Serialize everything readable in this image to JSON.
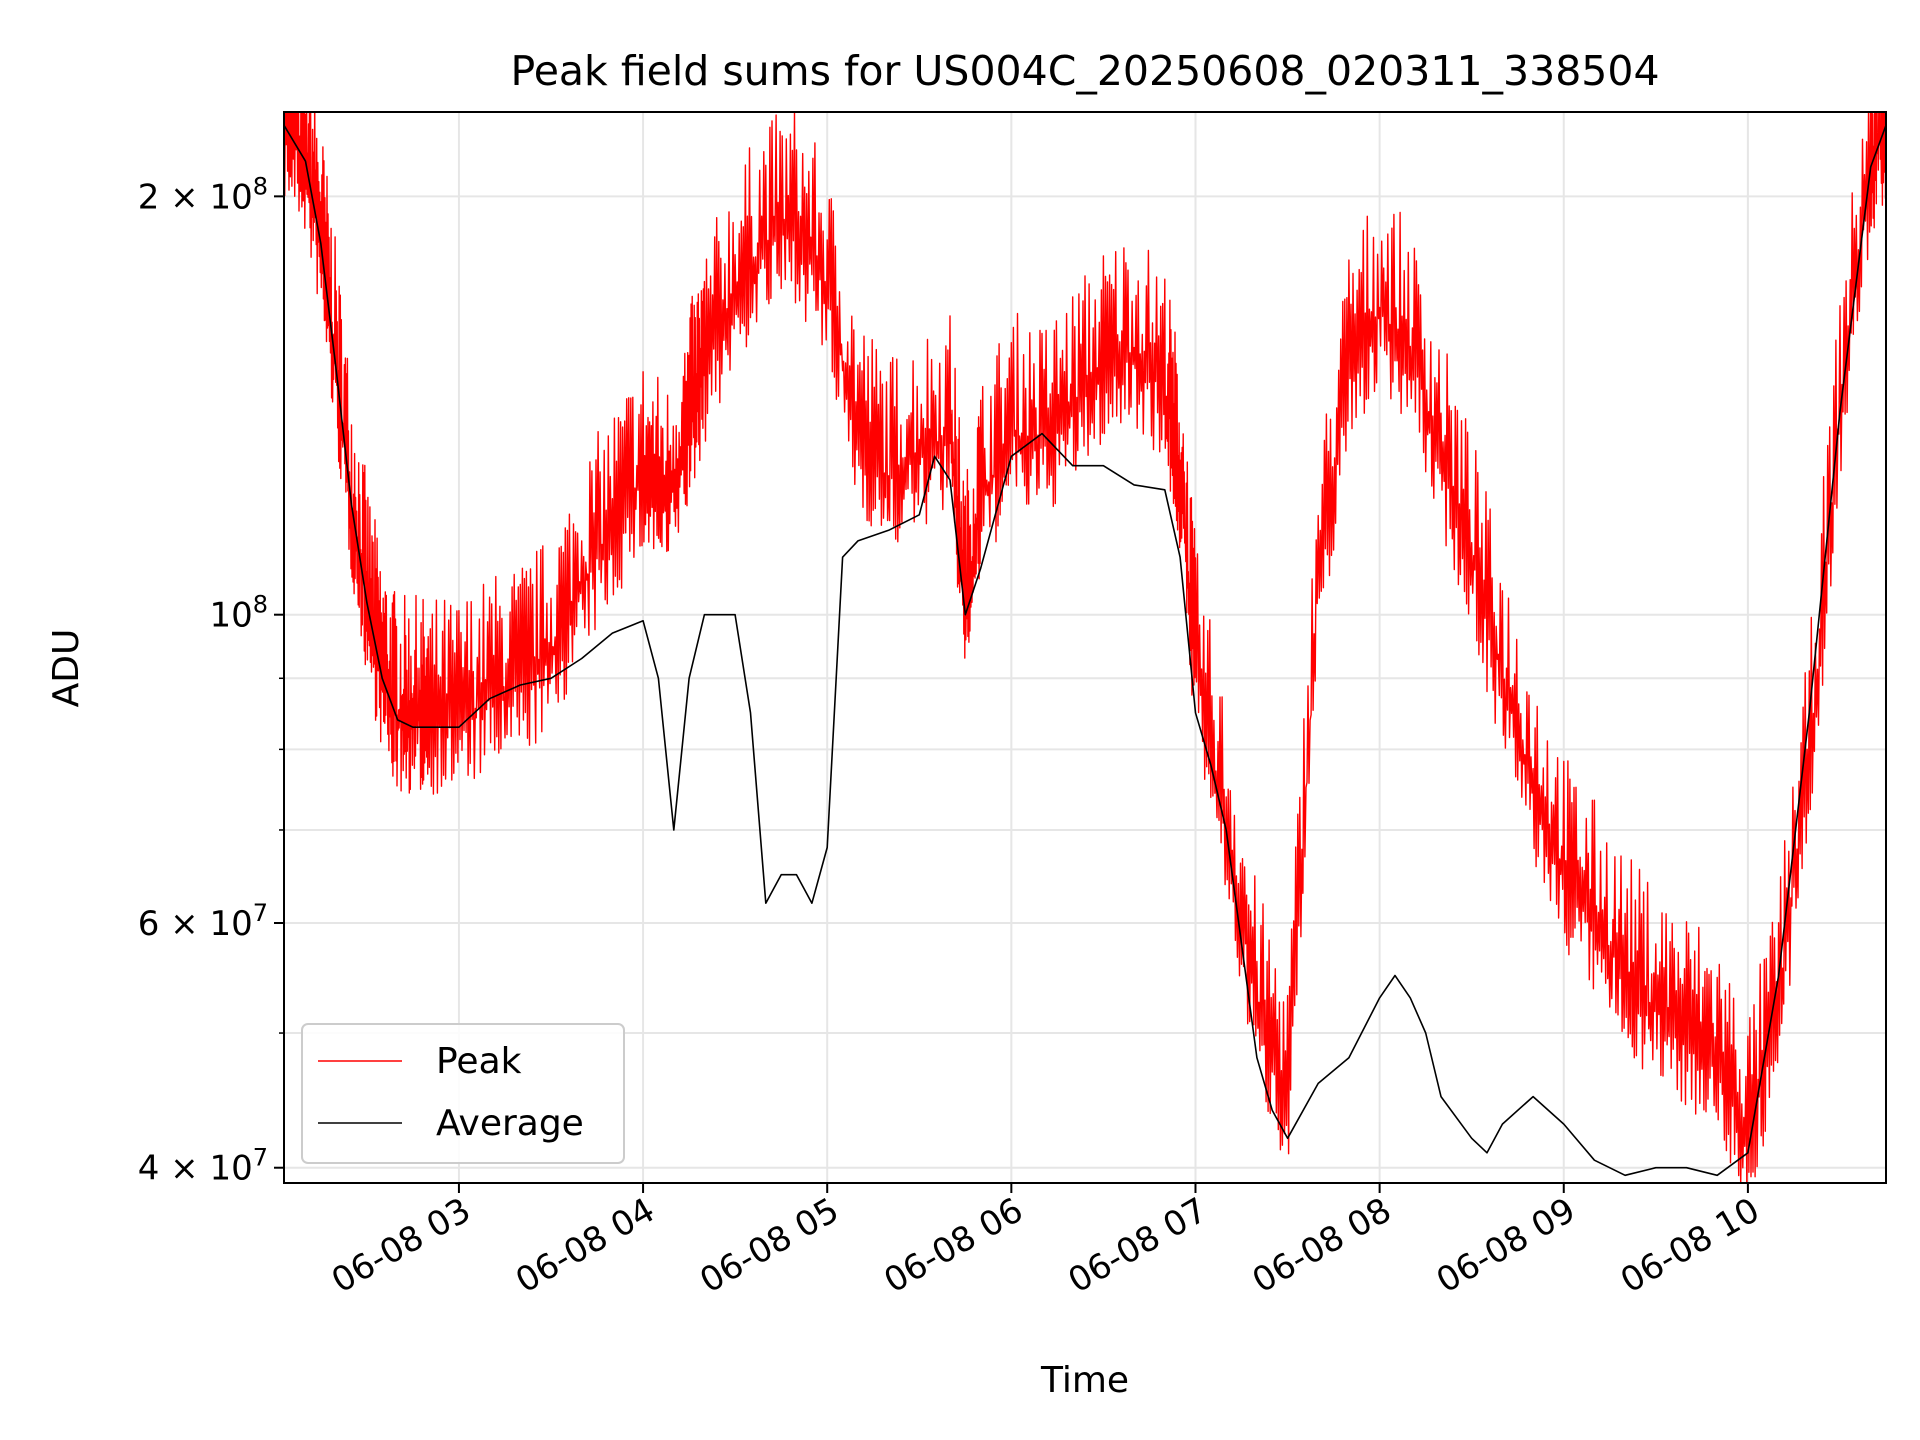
{
  "chart_data": {
    "type": "line",
    "title": "Peak field sums for US004C_20250608_020311_338504",
    "xlabel": "Time",
    "ylabel": "ADU",
    "yscale": "log",
    "xlim": [
      "2025-06-08 02:03",
      "2025-06-08 10:45"
    ],
    "ylim": [
      39000000,
      230000000
    ],
    "x_ticks": [
      "06-08 03",
      "06-08 04",
      "06-08 05",
      "06-08 06",
      "06-08 07",
      "06-08 08",
      "06-08 09",
      "06-08 10"
    ],
    "y_ticks": [
      {
        "value": 40000000,
        "label": "4 × 10^7"
      },
      {
        "value": 60000000,
        "label": "6 × 10^7"
      },
      {
        "value": 100000000,
        "label": "10^8"
      },
      {
        "value": 200000000,
        "label": "2 × 10^8"
      }
    ],
    "grid": true,
    "legend": "lower-left",
    "series": [
      {
        "name": "Peak",
        "color": "#ff0000",
        "spiky": true,
        "x": [
          "2025-06-08 02:03",
          "2025-06-08 02:10",
          "2025-06-08 02:15",
          "2025-06-08 02:20",
          "2025-06-08 02:25",
          "2025-06-08 02:30",
          "2025-06-08 02:35",
          "2025-06-08 02:40",
          "2025-06-08 02:45",
          "2025-06-08 02:50",
          "2025-06-08 03:00",
          "2025-06-08 03:10",
          "2025-06-08 03:20",
          "2025-06-08 03:30",
          "2025-06-08 03:40",
          "2025-06-08 03:50",
          "2025-06-08 04:00",
          "2025-06-08 04:08",
          "2025-06-08 04:15",
          "2025-06-08 04:20",
          "2025-06-08 04:30",
          "2025-06-08 04:40",
          "2025-06-08 04:50",
          "2025-06-08 05:00",
          "2025-06-08 05:10",
          "2025-06-08 05:20",
          "2025-06-08 05:30",
          "2025-06-08 05:40",
          "2025-06-08 05:45",
          "2025-06-08 05:50",
          "2025-06-08 06:00",
          "2025-06-08 06:10",
          "2025-06-08 06:20",
          "2025-06-08 06:30",
          "2025-06-08 06:40",
          "2025-06-08 06:50",
          "2025-06-08 06:55",
          "2025-06-08 07:00",
          "2025-06-08 07:10",
          "2025-06-08 07:20",
          "2025-06-08 07:30",
          "2025-06-08 07:40",
          "2025-06-08 07:50",
          "2025-06-08 08:00",
          "2025-06-08 08:10",
          "2025-06-08 08:20",
          "2025-06-08 08:30",
          "2025-06-08 08:40",
          "2025-06-08 08:50",
          "2025-06-08 09:00",
          "2025-06-08 09:10",
          "2025-06-08 09:20",
          "2025-06-08 09:30",
          "2025-06-08 09:40",
          "2025-06-08 09:50",
          "2025-06-08 10:00",
          "2025-06-08 10:10",
          "2025-06-08 10:20",
          "2025-06-08 10:30",
          "2025-06-08 10:40",
          "2025-06-08 10:45"
        ],
        "y": [
          225000000,
          212000000,
          185000000,
          150000000,
          120000000,
          102000000,
          90000000,
          84000000,
          84000000,
          84000000,
          84000000,
          87000000,
          89000000,
          93000000,
          105000000,
          115000000,
          125000000,
          120000000,
          135000000,
          150000000,
          170000000,
          185000000,
          190000000,
          170000000,
          135000000,
          125000000,
          130000000,
          135000000,
          102000000,
          120000000,
          135000000,
          132000000,
          140000000,
          150000000,
          155000000,
          145000000,
          125000000,
          92000000,
          70000000,
          52000000,
          45000000,
          105000000,
          150000000,
          165000000,
          155000000,
          130000000,
          110000000,
          90000000,
          75000000,
          65000000,
          60000000,
          55000000,
          52000000,
          50000000,
          48000000,
          42000000,
          52000000,
          78000000,
          140000000,
          210000000,
          225000000
        ]
      },
      {
        "name": "Average",
        "color": "#000000",
        "spiky": false,
        "x": [
          "2025-06-08 02:03",
          "2025-06-08 02:10",
          "2025-06-08 02:15",
          "2025-06-08 02:20",
          "2025-06-08 02:25",
          "2025-06-08 02:30",
          "2025-06-08 02:35",
          "2025-06-08 02:40",
          "2025-06-08 02:45",
          "2025-06-08 02:50",
          "2025-06-08 03:00",
          "2025-06-08 03:10",
          "2025-06-08 03:20",
          "2025-06-08 03:30",
          "2025-06-08 03:40",
          "2025-06-08 03:50",
          "2025-06-08 04:00",
          "2025-06-08 04:05",
          "2025-06-08 04:10",
          "2025-06-08 04:15",
          "2025-06-08 04:20",
          "2025-06-08 04:25",
          "2025-06-08 04:30",
          "2025-06-08 04:35",
          "2025-06-08 04:40",
          "2025-06-08 04:45",
          "2025-06-08 04:50",
          "2025-06-08 04:55",
          "2025-06-08 05:00",
          "2025-06-08 05:05",
          "2025-06-08 05:10",
          "2025-06-08 05:20",
          "2025-06-08 05:30",
          "2025-06-08 05:35",
          "2025-06-08 05:40",
          "2025-06-08 05:45",
          "2025-06-08 05:50",
          "2025-06-08 06:00",
          "2025-06-08 06:10",
          "2025-06-08 06:20",
          "2025-06-08 06:30",
          "2025-06-08 06:40",
          "2025-06-08 06:50",
          "2025-06-08 06:55",
          "2025-06-08 07:00",
          "2025-06-08 07:05",
          "2025-06-08 07:10",
          "2025-06-08 07:15",
          "2025-06-08 07:20",
          "2025-06-08 07:25",
          "2025-06-08 07:30",
          "2025-06-08 07:40",
          "2025-06-08 07:50",
          "2025-06-08 08:00",
          "2025-06-08 08:05",
          "2025-06-08 08:10",
          "2025-06-08 08:15",
          "2025-06-08 08:20",
          "2025-06-08 08:30",
          "2025-06-08 08:35",
          "2025-06-08 08:40",
          "2025-06-08 08:50",
          "2025-06-08 09:00",
          "2025-06-08 09:10",
          "2025-06-08 09:20",
          "2025-06-08 09:30",
          "2025-06-08 09:40",
          "2025-06-08 09:50",
          "2025-06-08 10:00",
          "2025-06-08 10:10",
          "2025-06-08 10:20",
          "2025-06-08 10:30",
          "2025-06-08 10:40",
          "2025-06-08 10:45"
        ],
        "y": [
          225000000,
          212000000,
          185000000,
          150000000,
          120000000,
          102000000,
          90000000,
          84000000,
          83000000,
          83000000,
          83000000,
          87000000,
          89000000,
          90000000,
          93000000,
          97000000,
          99000000,
          90000000,
          70000000,
          90000000,
          100000000,
          100000000,
          100000000,
          85000000,
          62000000,
          65000000,
          65000000,
          62000000,
          68000000,
          110000000,
          113000000,
          115000000,
          118000000,
          130000000,
          125000000,
          100000000,
          108000000,
          130000000,
          135000000,
          128000000,
          128000000,
          124000000,
          123000000,
          110000000,
          85000000,
          78000000,
          70000000,
          58000000,
          48000000,
          44000000,
          42000000,
          46000000,
          48000000,
          53000000,
          55000000,
          53000000,
          50000000,
          45000000,
          42000000,
          41000000,
          43000000,
          45000000,
          43000000,
          40500000,
          39500000,
          40000000,
          40000000,
          39500000,
          41000000,
          55000000,
          85000000,
          140000000,
          210000000,
          225000000
        ]
      }
    ]
  }
}
